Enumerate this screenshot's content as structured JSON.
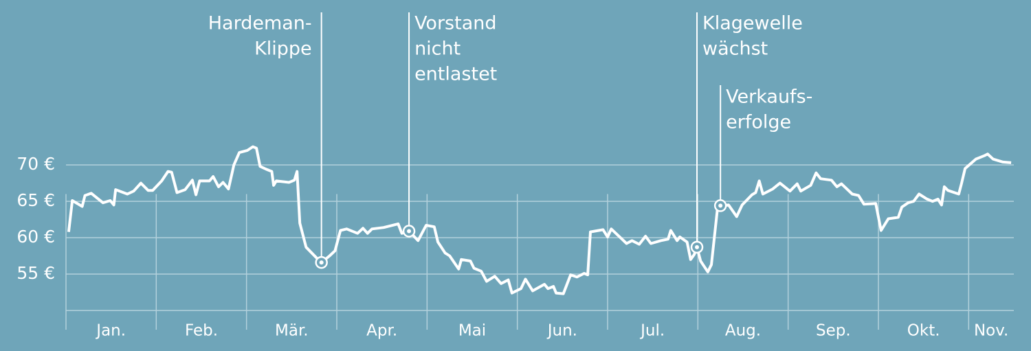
{
  "chart_data": {
    "type": "line",
    "categories": [
      "Jan.",
      "Feb.",
      "Mär.",
      "Apr.",
      "Mai",
      "Jun.",
      "Jul.",
      "Aug.",
      "Sep.",
      "Okt.",
      "Nov."
    ],
    "xlim": [
      0,
      10.5
    ],
    "xticks": [
      1,
      2,
      3,
      4,
      5,
      6,
      7,
      8,
      9,
      10
    ],
    "ylim": [
      50,
      92
    ],
    "yticks": [
      {
        "value": 55,
        "label": "55 €"
      },
      {
        "value": 60,
        "label": "60 €"
      },
      {
        "value": 65,
        "label": "65 €"
      },
      {
        "value": 70,
        "label": "70 €"
      }
    ],
    "grid": true,
    "series": [
      {
        "color": "#ffffff",
        "x": [
          0.03,
          0.07,
          0.18,
          0.21,
          0.28,
          0.41,
          0.49,
          0.53,
          0.55,
          0.68,
          0.75,
          0.83,
          0.91,
          0.96,
          1.06,
          1.13,
          1.17,
          1.23,
          1.32,
          1.4,
          1.44,
          1.48,
          1.59,
          1.63,
          1.69,
          1.74,
          1.8,
          1.86,
          1.92,
          2.01,
          2.07,
          2.11,
          2.15,
          2.22,
          2.28,
          2.3,
          2.33,
          2.47,
          2.53,
          2.56,
          2.59,
          2.62,
          2.66,
          2.77,
          2.83,
          2.92,
          2.98,
          3.04,
          3.11,
          3.23,
          3.29,
          3.34,
          3.39,
          3.52,
          3.68,
          3.72,
          3.8,
          3.9,
          3.99,
          4.08,
          4.12,
          4.2,
          4.25,
          4.35,
          4.38,
          4.48,
          4.52,
          4.6,
          4.66,
          4.75,
          4.82,
          4.9,
          4.94,
          5.04,
          5.09,
          5.17,
          5.3,
          5.34,
          5.4,
          5.43,
          5.51,
          5.59,
          5.66,
          5.74,
          5.78,
          5.81,
          5.95,
          6.0,
          6.04,
          6.16,
          6.21,
          6.27,
          6.35,
          6.42,
          6.48,
          6.59,
          6.67,
          6.7,
          6.77,
          6.8,
          6.88,
          6.92,
          6.96,
          6.99,
          7.03,
          7.11,
          7.15,
          7.22,
          7.34,
          7.43,
          7.49,
          7.6,
          7.64,
          7.68,
          7.72,
          7.83,
          7.91,
          8.02,
          8.1,
          8.14,
          8.25,
          8.31,
          8.36,
          8.48,
          8.54,
          8.59,
          8.71,
          8.78,
          8.84,
          8.97,
          9.03,
          9.11,
          9.22,
          9.26,
          9.33,
          9.39,
          9.45,
          9.54,
          9.6,
          9.66,
          9.7,
          9.73,
          9.77,
          9.89,
          9.92,
          9.96,
          10.08,
          10.18,
          10.21,
          10.27,
          10.38,
          10.47
        ],
        "values": [
          60.8,
          65.1,
          64.3,
          65.8,
          66.1,
          64.8,
          65.1,
          64.5,
          66.6,
          66.0,
          66.4,
          67.5,
          66.5,
          66.5,
          67.8,
          69.1,
          69.0,
          66.2,
          66.6,
          67.9,
          65.9,
          67.8,
          67.8,
          68.4,
          67.0,
          67.6,
          66.7,
          70.0,
          71.7,
          72.0,
          72.5,
          72.3,
          69.8,
          69.4,
          69.1,
          67.2,
          67.8,
          67.6,
          67.9,
          69.1,
          62.0,
          60.6,
          58.7,
          57.3,
          56.6,
          57.5,
          58.2,
          61.0,
          61.2,
          60.6,
          61.3,
          60.6,
          61.2,
          61.4,
          61.9,
          60.6,
          60.9,
          59.6,
          61.7,
          61.5,
          59.4,
          57.9,
          57.5,
          55.7,
          57.0,
          56.8,
          55.8,
          55.4,
          54.0,
          54.7,
          53.7,
          54.2,
          52.4,
          53.0,
          54.3,
          52.7,
          53.6,
          53.0,
          53.3,
          52.4,
          52.3,
          54.9,
          54.6,
          55.1,
          54.9,
          60.8,
          61.1,
          60.1,
          61.2,
          59.8,
          59.2,
          59.6,
          59.1,
          60.2,
          59.2,
          59.6,
          59.8,
          61.0,
          59.6,
          60.1,
          59.4,
          57.0,
          57.7,
          58.7,
          56.8,
          55.3,
          56.3,
          64.3,
          64.5,
          62.9,
          64.5,
          65.9,
          66.2,
          67.8,
          66.0,
          66.7,
          67.5,
          66.4,
          67.4,
          66.4,
          67.2,
          68.9,
          68.1,
          67.9,
          67.0,
          67.4,
          66.0,
          65.8,
          64.6,
          64.7,
          61.0,
          62.6,
          62.8,
          64.2,
          64.8,
          65.0,
          66.0,
          65.3,
          65.0,
          65.3,
          64.5,
          67.0,
          66.5,
          66.0,
          67.4,
          69.5,
          70.8,
          71.3,
          71.5,
          70.8,
          70.4,
          70.3
        ]
      }
    ],
    "annotations": [
      {
        "text": [
          "Hardeman-",
          "Klippe"
        ],
        "x": 2.83,
        "y": 56.6,
        "side": "left"
      },
      {
        "text": [
          "Vorstand",
          "nicht",
          "entlastet"
        ],
        "x": 3.8,
        "y": 60.9,
        "side": "right"
      },
      {
        "text": [
          "Klagewelle",
          "wächst"
        ],
        "x": 6.99,
        "y": 58.7,
        "side": "right"
      },
      {
        "text": [
          "Verkaufs-",
          "erfolge"
        ],
        "x": 7.25,
        "y": 64.4,
        "side": "right"
      }
    ]
  }
}
